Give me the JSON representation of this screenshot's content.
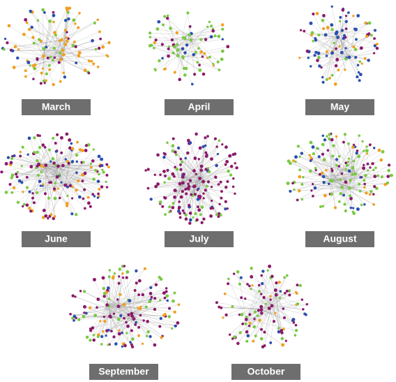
{
  "panels": [
    {
      "label": "March"
    },
    {
      "label": "April"
    },
    {
      "label": "May"
    },
    {
      "label": "June"
    },
    {
      "label": "July"
    },
    {
      "label": "August"
    },
    {
      "label": "September"
    },
    {
      "label": "October"
    }
  ]
}
